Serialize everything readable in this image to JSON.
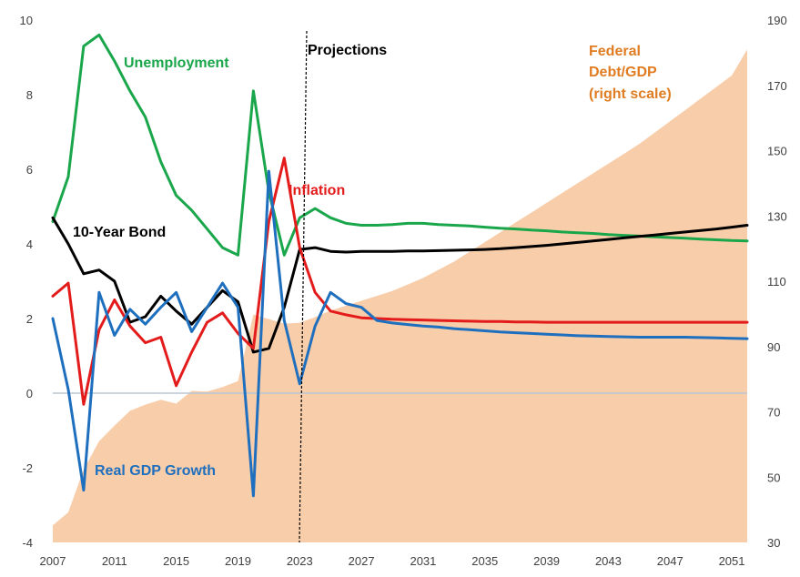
{
  "chart_data": {
    "type": "line",
    "title": "",
    "xlabel": "",
    "ylabel": "",
    "xlim": [
      2007,
      2052
    ],
    "ylim": [
      -4,
      10
    ],
    "y2lim": [
      30,
      190
    ],
    "legend": "inline labels",
    "grid": false,
    "x_ticks": [
      "2007",
      "2011",
      "2015",
      "2019",
      "2023",
      "2027",
      "2031",
      "2035",
      "2039",
      "2043",
      "2047",
      "2051"
    ],
    "y_ticks": [
      "-4",
      "-2",
      "0",
      "2",
      "4",
      "6",
      "8",
      "10"
    ],
    "y2_ticks": [
      "30",
      "50",
      "70",
      "90",
      "110",
      "130",
      "150",
      "170",
      "190"
    ],
    "annotations": {
      "projections": "Projections",
      "projections_x": 2023.1
    },
    "series": [
      {
        "name": "Federal Debt/GDP (right scale)",
        "label_lines": [
          "Federal",
          "Debt/GDP",
          "(right scale)"
        ],
        "type": "area",
        "axis": "right",
        "color": "#f8cdaa",
        "label_color": "#e07c22",
        "x": [
          2007,
          2008,
          2009,
          2010,
          2011,
          2012,
          2013,
          2014,
          2015,
          2016,
          2017,
          2018,
          2019,
          2020,
          2021,
          2022,
          2023,
          2024,
          2025,
          2026,
          2027,
          2028,
          2029,
          2030,
          2031,
          2032,
          2033,
          2034,
          2035,
          2036,
          2037,
          2038,
          2039,
          2040,
          2041,
          2042,
          2043,
          2044,
          2045,
          2046,
          2047,
          2048,
          2049,
          2050,
          2051,
          2052
        ],
        "values": [
          35.2,
          39.2,
          52.3,
          61,
          65.8,
          70.3,
          72.2,
          73.7,
          72.5,
          76.4,
          76.2,
          77.6,
          79.4,
          99.8,
          98.4,
          97,
          97.3,
          99,
          101,
          102.5,
          104,
          105.5,
          107,
          109,
          111,
          113.5,
          116,
          119,
          122,
          125,
          128,
          131,
          134,
          137,
          140,
          143,
          146,
          149,
          152,
          155.5,
          159,
          162.5,
          166,
          169.5,
          173,
          181
        ]
      },
      {
        "name": "Unemployment",
        "axis": "left",
        "color": "#1aa64a",
        "x": [
          2007,
          2008,
          2009,
          2010,
          2011,
          2012,
          2013,
          2014,
          2015,
          2016,
          2017,
          2018,
          2019,
          2020,
          2021,
          2022,
          2023,
          2024,
          2025,
          2026,
          2027,
          2028,
          2029,
          2030,
          2031,
          2032,
          2033,
          2034,
          2035,
          2036,
          2037,
          2038,
          2039,
          2040,
          2041,
          2042,
          2043,
          2044,
          2045,
          2046,
          2047,
          2048,
          2049,
          2050,
          2051,
          2052
        ],
        "values": [
          4.6,
          5.8,
          9.3,
          9.6,
          8.9,
          8.1,
          7.4,
          6.2,
          5.3,
          4.9,
          4.4,
          3.9,
          3.7,
          8.1,
          5.4,
          3.7,
          4.7,
          4.95,
          4.7,
          4.55,
          4.5,
          4.5,
          4.52,
          4.55,
          4.55,
          4.52,
          4.5,
          4.48,
          4.45,
          4.42,
          4.4,
          4.37,
          4.35,
          4.32,
          4.3,
          4.28,
          4.25,
          4.23,
          4.21,
          4.19,
          4.17,
          4.15,
          4.13,
          4.11,
          4.09,
          4.08
        ]
      },
      {
        "name": "10-Year Bond",
        "axis": "left",
        "color": "#000000",
        "x": [
          2007,
          2008,
          2009,
          2010,
          2011,
          2012,
          2013,
          2014,
          2015,
          2016,
          2017,
          2018,
          2019,
          2020,
          2021,
          2022,
          2023,
          2024,
          2025,
          2026,
          2027,
          2028,
          2029,
          2030,
          2031,
          2032,
          2033,
          2034,
          2035,
          2036,
          2037,
          2038,
          2039,
          2040,
          2041,
          2042,
          2043,
          2044,
          2045,
          2046,
          2047,
          2048,
          2049,
          2050,
          2051,
          2052
        ],
        "values": [
          4.7,
          4.0,
          3.2,
          3.3,
          3.0,
          1.9,
          2.05,
          2.6,
          2.2,
          1.85,
          2.3,
          2.75,
          2.45,
          1.1,
          1.2,
          2.3,
          3.85,
          3.9,
          3.8,
          3.78,
          3.8,
          3.8,
          3.8,
          3.81,
          3.81,
          3.82,
          3.83,
          3.84,
          3.85,
          3.87,
          3.9,
          3.93,
          3.96,
          4.0,
          4.04,
          4.08,
          4.12,
          4.16,
          4.2,
          4.24,
          4.28,
          4.32,
          4.36,
          4.4,
          4.45,
          4.5
        ]
      },
      {
        "name": "Inflation",
        "axis": "left",
        "color": "#e31b1b",
        "x": [
          2007,
          2008,
          2009,
          2010,
          2011,
          2012,
          2013,
          2014,
          2015,
          2016,
          2017,
          2018,
          2019,
          2020,
          2021,
          2022,
          2023,
          2024,
          2025,
          2026,
          2027,
          2028,
          2029,
          2030,
          2031,
          2032,
          2033,
          2034,
          2035,
          2036,
          2037,
          2038,
          2039,
          2040,
          2041,
          2042,
          2043,
          2044,
          2045,
          2046,
          2047,
          2048,
          2049,
          2050,
          2051,
          2052
        ],
        "values": [
          2.6,
          2.95,
          -0.3,
          1.7,
          2.5,
          1.8,
          1.35,
          1.5,
          0.2,
          1.1,
          1.9,
          2.15,
          1.6,
          1.2,
          4.6,
          6.3,
          3.9,
          2.7,
          2.2,
          2.1,
          2.02,
          2.0,
          1.98,
          1.97,
          1.96,
          1.95,
          1.94,
          1.93,
          1.92,
          1.92,
          1.91,
          1.91,
          1.9,
          1.9,
          1.9,
          1.9,
          1.9,
          1.9,
          1.9,
          1.9,
          1.9,
          1.9,
          1.9,
          1.9,
          1.9,
          1.9
        ]
      },
      {
        "name": "Real GDP Growth",
        "axis": "left",
        "color": "#1f6fbf",
        "x": [
          2007,
          2008,
          2009,
          2010,
          2011,
          2012,
          2013,
          2014,
          2015,
          2016,
          2017,
          2018,
          2019,
          2020,
          2021,
          2022,
          2023,
          2024,
          2025,
          2026,
          2027,
          2028,
          2029,
          2030,
          2031,
          2032,
          2033,
          2034,
          2035,
          2036,
          2037,
          2038,
          2039,
          2040,
          2041,
          2042,
          2043,
          2044,
          2045,
          2046,
          2047,
          2048,
          2049,
          2050,
          2051,
          2052
        ],
        "values": [
          2.0,
          0.1,
          -2.6,
          2.7,
          1.55,
          2.25,
          1.85,
          2.3,
          2.7,
          1.65,
          2.3,
          2.95,
          2.3,
          -2.75,
          5.95,
          1.95,
          0.25,
          1.8,
          2.7,
          2.4,
          2.3,
          1.95,
          1.88,
          1.84,
          1.8,
          1.77,
          1.73,
          1.7,
          1.67,
          1.64,
          1.62,
          1.6,
          1.58,
          1.56,
          1.54,
          1.53,
          1.52,
          1.51,
          1.5,
          1.5,
          1.5,
          1.5,
          1.49,
          1.48,
          1.47,
          1.46
        ]
      }
    ]
  }
}
